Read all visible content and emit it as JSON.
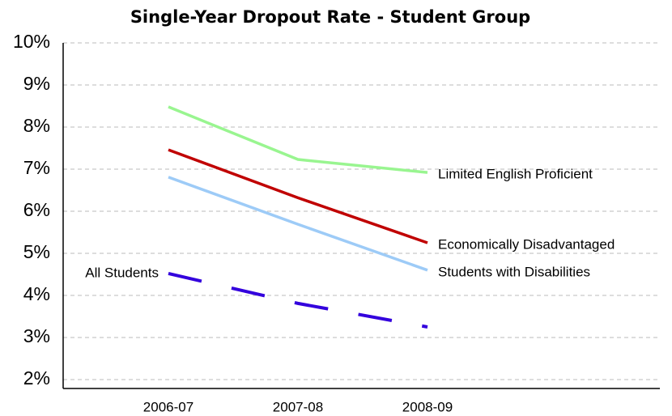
{
  "chart_data": {
    "type": "line",
    "title": "Single-Year Dropout Rate - Student Group",
    "categories": [
      "2006-07",
      "2007-08",
      "2008-09"
    ],
    "series": [
      {
        "name": "Limited English Proficient",
        "color": "#99f590",
        "values": [
          8.48,
          7.23,
          6.92
        ]
      },
      {
        "name": "Economically Disadvantaged",
        "color": "#c00000",
        "values": [
          7.46,
          6.32,
          5.25
        ]
      },
      {
        "name": "Students with Disabilities",
        "color": "#9dcbf7",
        "values": [
          6.81,
          5.69,
          4.6
        ]
      },
      {
        "name": "All Students",
        "color": "#3300dd",
        "dashed": true,
        "values": [
          4.52,
          3.81,
          3.25
        ]
      }
    ],
    "ylim": [
      2,
      10
    ],
    "yticks": [
      {
        "value": 2,
        "label": "2%"
      },
      {
        "value": 3,
        "label": "3%"
      },
      {
        "value": 4,
        "label": "4%"
      },
      {
        "value": 5,
        "label": "5%"
      },
      {
        "value": 6,
        "label": "6%"
      },
      {
        "value": 7,
        "label": "7%"
      },
      {
        "value": 8,
        "label": "8%"
      },
      {
        "value": 9,
        "label": "9%"
      },
      {
        "value": 10,
        "label": "10%"
      }
    ],
    "grid": true
  }
}
